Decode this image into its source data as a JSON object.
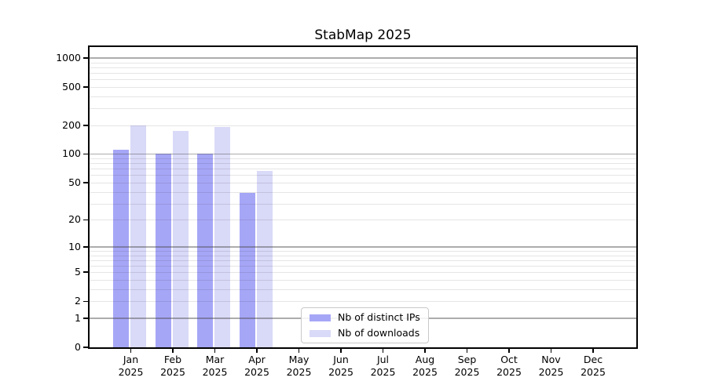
{
  "chart_data": {
    "type": "bar",
    "title": "StabMap 2025",
    "categories": [
      "Jan",
      "Feb",
      "Mar",
      "Apr",
      "May",
      "Jun",
      "Jul",
      "Aug",
      "Sep",
      "Oct",
      "Nov",
      "Dec"
    ],
    "x_tick_year": "2025",
    "series": [
      {
        "name": "Nb of distinct IPs",
        "color": "#a6a6f7",
        "values": [
          111,
          100,
          101,
          39,
          0,
          0,
          0,
          0,
          0,
          0,
          0,
          0
        ]
      },
      {
        "name": "Nb of downloads",
        "color": "#d9d9f8",
        "values": [
          200,
          174,
          193,
          67,
          0,
          0,
          0,
          0,
          0,
          0,
          0,
          0
        ]
      }
    ],
    "y_axis": {
      "scale": "log1p",
      "ticks": [
        0,
        1,
        2,
        5,
        10,
        20,
        50,
        100,
        200,
        500,
        1000
      ],
      "ylim": [
        0,
        1320
      ],
      "minor_gridlines": true
    },
    "legend": {
      "position": "bottom-center",
      "entries": [
        "Nb of distinct IPs",
        "Nb of downloads"
      ]
    },
    "grid": {
      "orientation": "horizontal",
      "major_color": "#b3b3b3",
      "minor_color": "#e7e7e7"
    }
  }
}
